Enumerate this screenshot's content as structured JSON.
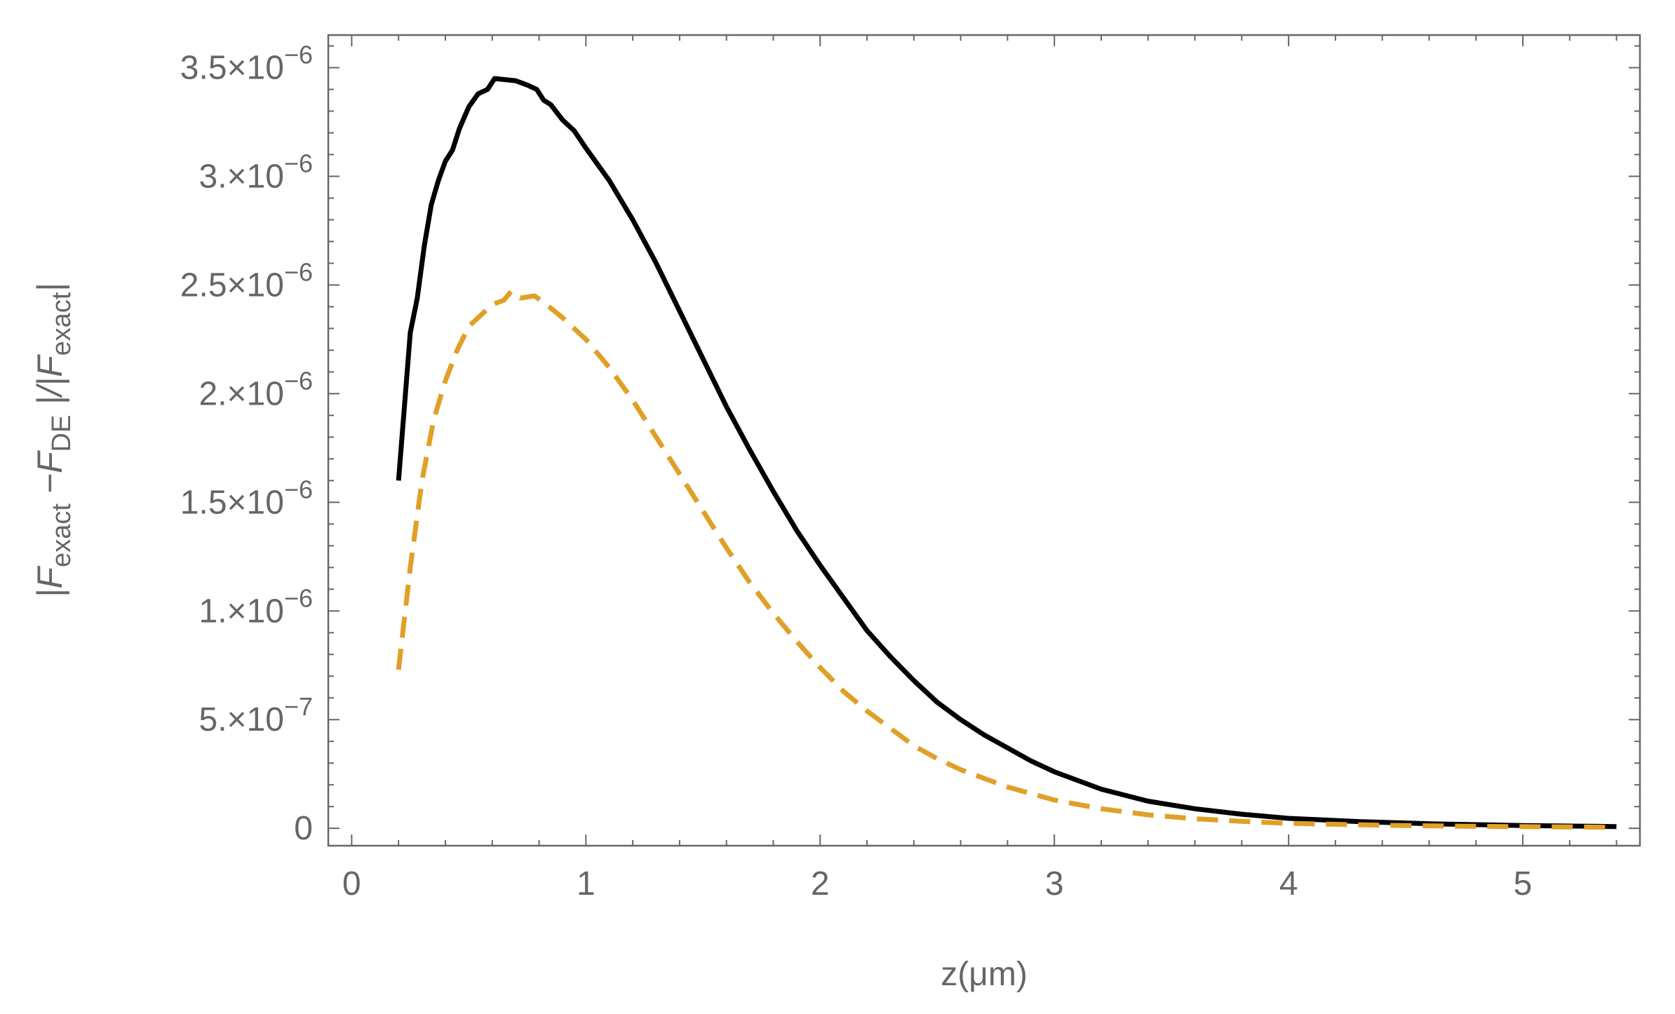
{
  "chart_data": {
    "type": "line",
    "title": "",
    "xlabel": "z(μm)",
    "ylabel": {
      "text_segments": [
        "|F",
        "exact",
        " −F",
        "DE",
        " |/|F",
        "exact",
        "|"
      ]
    },
    "xlim": [
      -0.1,
      5.5
    ],
    "ylim": [
      -8e-08,
      3.65e-06
    ],
    "x_ticks": [
      {
        "value": 0,
        "label": "0"
      },
      {
        "value": 1,
        "label": "1"
      },
      {
        "value": 2,
        "label": "2"
      },
      {
        "value": 3,
        "label": "3"
      },
      {
        "value": 4,
        "label": "4"
      },
      {
        "value": 5,
        "label": "5"
      }
    ],
    "y_ticks": [
      {
        "value": 0,
        "mantissa": "0",
        "exponent": ""
      },
      {
        "value": 5e-07,
        "mantissa": "5.×10",
        "exponent": "−7"
      },
      {
        "value": 1e-06,
        "mantissa": "1.×10",
        "exponent": "−6"
      },
      {
        "value": 1.5e-06,
        "mantissa": "1.5×10",
        "exponent": "−6"
      },
      {
        "value": 2e-06,
        "mantissa": "2.×10",
        "exponent": "−6"
      },
      {
        "value": 2.5e-06,
        "mantissa": "2.5×10",
        "exponent": "−6"
      },
      {
        "value": 3e-06,
        "mantissa": "3.×10",
        "exponent": "−6"
      },
      {
        "value": 3.5e-06,
        "mantissa": "3.5×10",
        "exponent": "−6"
      }
    ],
    "grid": false,
    "frame": true,
    "series": [
      {
        "color": "#000000",
        "dash": "solid",
        "points": [
          [
            0.2,
            1.6e-06
          ],
          [
            0.25,
            2.28e-06
          ],
          [
            0.28,
            2.44e-06
          ],
          [
            0.31,
            2.68e-06
          ],
          [
            0.34,
            2.87e-06
          ],
          [
            0.37,
            2.98e-06
          ],
          [
            0.4,
            3.07e-06
          ],
          [
            0.43,
            3.12e-06
          ],
          [
            0.46,
            3.22e-06
          ],
          [
            0.5,
            3.32e-06
          ],
          [
            0.54,
            3.38e-06
          ],
          [
            0.58,
            3.4e-06
          ],
          [
            0.61,
            3.45e-06
          ],
          [
            0.7,
            3.44e-06
          ],
          [
            0.75,
            3.42e-06
          ],
          [
            0.79,
            3.4e-06
          ],
          [
            0.82,
            3.35e-06
          ],
          [
            0.85,
            3.33e-06
          ],
          [
            0.9,
            3.26e-06
          ],
          [
            0.95,
            3.21e-06
          ],
          [
            1.0,
            3.13e-06
          ],
          [
            1.1,
            2.98e-06
          ],
          [
            1.2,
            2.8e-06
          ],
          [
            1.3,
            2.6e-06
          ],
          [
            1.4,
            2.38e-06
          ],
          [
            1.5,
            2.16e-06
          ],
          [
            1.6,
            1.94e-06
          ],
          [
            1.7,
            1.74e-06
          ],
          [
            1.8,
            1.55e-06
          ],
          [
            1.9,
            1.37e-06
          ],
          [
            2.0,
            1.21e-06
          ],
          [
            2.1,
            1.06e-06
          ],
          [
            2.2,
            9.1e-07
          ],
          [
            2.3,
            7.9e-07
          ],
          [
            2.4,
            6.8e-07
          ],
          [
            2.5,
            5.8e-07
          ],
          [
            2.6,
            5e-07
          ],
          [
            2.7,
            4.3e-07
          ],
          [
            2.8,
            3.7e-07
          ],
          [
            2.9,
            3.1e-07
          ],
          [
            3.0,
            2.6e-07
          ],
          [
            3.2,
            1.8e-07
          ],
          [
            3.4,
            1.25e-07
          ],
          [
            3.6,
            9e-08
          ],
          [
            3.8,
            6.5e-08
          ],
          [
            4.0,
            4.6e-08
          ],
          [
            4.3,
            3.1e-08
          ],
          [
            4.6,
            2.1e-08
          ],
          [
            5.0,
            1.3e-08
          ],
          [
            5.4,
            8e-09
          ]
        ]
      },
      {
        "color": "#E0A028",
        "dash": "dashed",
        "points": [
          [
            0.2,
            7.3e-07
          ],
          [
            0.25,
            1.2e-06
          ],
          [
            0.3,
            1.6e-06
          ],
          [
            0.35,
            1.88e-06
          ],
          [
            0.4,
            2.06e-06
          ],
          [
            0.45,
            2.2e-06
          ],
          [
            0.5,
            2.31e-06
          ],
          [
            0.55,
            2.36e-06
          ],
          [
            0.6,
            2.41e-06
          ],
          [
            0.65,
            2.43e-06
          ],
          [
            0.68,
            2.47e-06
          ],
          [
            0.72,
            2.44e-06
          ],
          [
            0.78,
            2.45e-06
          ],
          [
            0.82,
            2.42e-06
          ],
          [
            0.9,
            2.35e-06
          ],
          [
            1.0,
            2.25e-06
          ],
          [
            1.1,
            2.12e-06
          ],
          [
            1.2,
            1.97e-06
          ],
          [
            1.3,
            1.8e-06
          ],
          [
            1.4,
            1.63e-06
          ],
          [
            1.5,
            1.46e-06
          ],
          [
            1.6,
            1.29e-06
          ],
          [
            1.7,
            1.13e-06
          ],
          [
            1.8,
            9.9e-07
          ],
          [
            1.9,
            8.6e-07
          ],
          [
            2.0,
            7.4e-07
          ],
          [
            2.1,
            6.3e-07
          ],
          [
            2.2,
            5.4e-07
          ],
          [
            2.3,
            4.6e-07
          ],
          [
            2.4,
            3.8e-07
          ],
          [
            2.5,
            3.2e-07
          ],
          [
            2.6,
            2.7e-07
          ],
          [
            2.8,
            1.9e-07
          ],
          [
            3.0,
            1.3e-07
          ],
          [
            3.2,
            9e-08
          ],
          [
            3.4,
            6.2e-08
          ],
          [
            3.6,
            4.4e-08
          ],
          [
            3.8,
            3.2e-08
          ],
          [
            4.0,
            2.3e-08
          ],
          [
            4.4,
            1.4e-08
          ],
          [
            4.8,
            9e-09
          ],
          [
            5.4,
            5e-09
          ]
        ]
      }
    ]
  }
}
